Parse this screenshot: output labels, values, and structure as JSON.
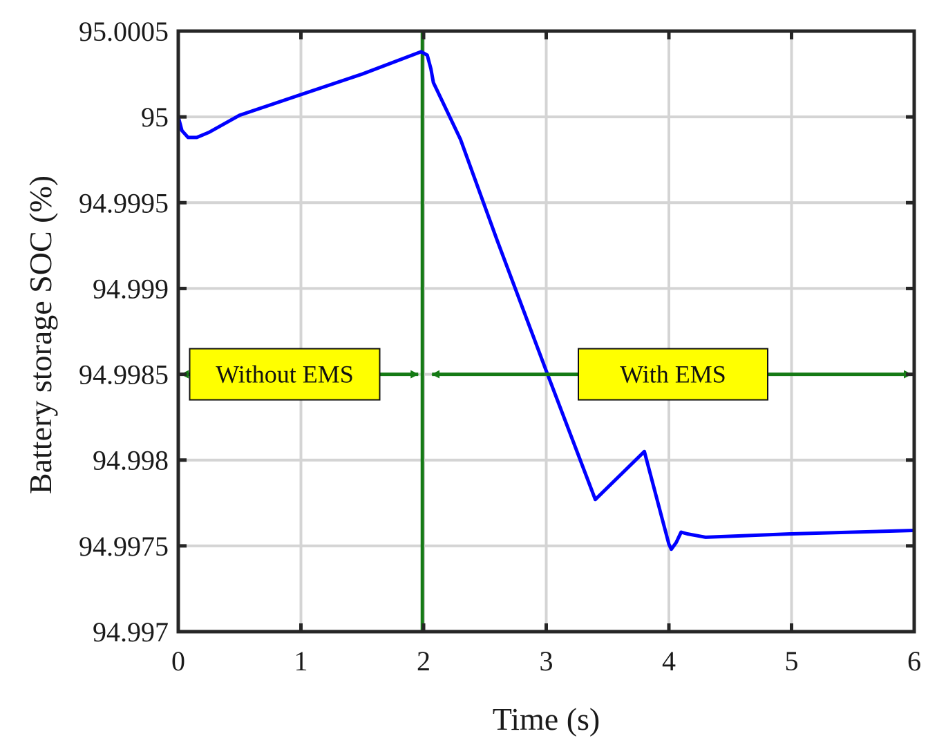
{
  "chart_data": {
    "type": "line",
    "title": "",
    "xlabel": "Time (s)",
    "ylabel": "Battery storage SOC (%)",
    "xlim": [
      0,
      6
    ],
    "ylim": [
      94.997,
      95.0005
    ],
    "grid": true,
    "x_ticks": [
      0,
      1,
      2,
      3,
      4,
      5,
      6
    ],
    "x_tick_labels": [
      "0",
      "1",
      "2",
      "3",
      "4",
      "5",
      "6"
    ],
    "y_ticks": [
      94.997,
      94.9975,
      94.998,
      94.9985,
      94.999,
      94.9995,
      95.0,
      95.0005
    ],
    "y_tick_labels": [
      "94.997",
      "94.9975",
      "94.998",
      "94.9985",
      "94.999",
      "94.9995",
      "95",
      "95.0005"
    ],
    "series": [
      {
        "color": "#0000ff",
        "x": [
          0.0,
          0.03,
          0.08,
          0.15,
          0.25,
          0.5,
          1.0,
          1.5,
          1.98,
          2.03,
          2.06,
          2.08,
          2.3,
          2.6,
          3.0,
          3.4,
          3.8,
          4.0,
          4.02,
          4.06,
          4.1,
          4.15,
          4.3,
          5.0,
          6.0
        ],
        "y": [
          95.0,
          94.99992,
          94.99988,
          94.99988,
          94.99991,
          95.00001,
          95.00013,
          95.00025,
          95.00038,
          95.00036,
          95.00028,
          95.0002,
          94.99987,
          94.99928,
          94.99852,
          94.99777,
          94.99805,
          94.99751,
          94.99748,
          94.99752,
          94.99758,
          94.99757,
          94.99755,
          94.99757,
          94.99759
        ]
      }
    ],
    "vline": {
      "x": 1.99,
      "color": "#157a15"
    },
    "annotations": [
      {
        "text": "Without EMS",
        "range": [
          0,
          1.99
        ],
        "y": 94.9985
      },
      {
        "text": "With EMS",
        "range": [
          1.99,
          6
        ],
        "y": 94.9985
      }
    ],
    "colors": {
      "line": "#0000ff",
      "arrow": "#157a15",
      "box_fill": "#ffff00",
      "grid": "#d4d4d4"
    }
  }
}
